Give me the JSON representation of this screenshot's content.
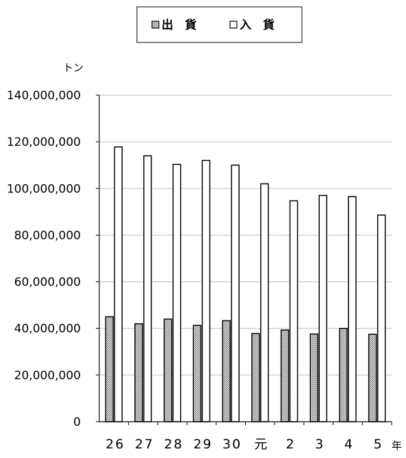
{
  "chart_data": {
    "type": "bar",
    "categories": [
      "26",
      "27",
      "28",
      "29",
      "30",
      "元",
      "2",
      "3",
      "4",
      "5"
    ],
    "series": [
      {
        "name": "出　貨",
        "values": [
          45000000,
          42000000,
          44000000,
          41300000,
          43300000,
          37800000,
          39300000,
          37600000,
          40000000,
          37500000
        ],
        "pattern": "dotted",
        "color": "#c8c8c8"
      },
      {
        "name": "入　貨",
        "values": [
          117800000,
          114000000,
          110300000,
          112000000,
          110000000,
          102000000,
          94700000,
          97000000,
          96500000,
          88600000
        ],
        "pattern": "solid",
        "color": "#ffffff"
      }
    ],
    "y_unit_label": "トン",
    "x_unit_label": "年",
    "yticks": [
      "0",
      "20,000,000",
      "40,000,000",
      "60,000,000",
      "80,000,000",
      "100,000,000",
      "120,000,000",
      "140,000,000"
    ],
    "ylim": [
      0,
      140000000
    ],
    "grid": true,
    "legend_position": "top-center"
  }
}
